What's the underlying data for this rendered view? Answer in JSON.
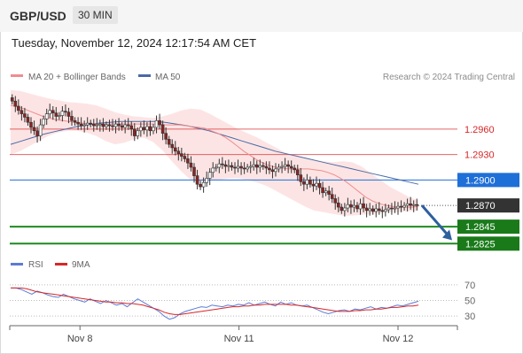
{
  "header": {
    "symbol": "GBP/USD",
    "timeframe": "30 MIN"
  },
  "datetime": "Tuesday, November 12, 2024 12:17:54 AM CET",
  "legend": {
    "ma20": "MA 20 + Bollinger Bands",
    "ma50": "MA 50",
    "credit": "Research © 2024 Trading Central",
    "rsi": "RSI",
    "rsi_ma": "9MA"
  },
  "colors": {
    "up_candle": "#ffffff",
    "down_candle": "#8b2323",
    "ma20": "#ef8d8d",
    "ma50": "#4a6aa5",
    "bollinger": "#fde4e4",
    "resistance": "#d62728",
    "pivot": "#1f6fd8",
    "support": "#1e8a1e",
    "arrow": "#2e5f9e"
  },
  "chart_data": [
    {
      "type": "candlestick",
      "title": "GBP/USD 30 MIN",
      "x_ticks": [
        "Nov 8",
        "Nov 11",
        "Nov 12"
      ],
      "ylim": [
        1.2818,
        1.3012
      ],
      "levels": [
        {
          "label": "1.2960",
          "value": 1.296,
          "kind": "resistance"
        },
        {
          "label": "1.2930",
          "value": 1.293,
          "kind": "resistance"
        },
        {
          "label": "1.2900",
          "value": 1.29,
          "kind": "pivot"
        },
        {
          "label": "1.2870",
          "value": 1.287,
          "kind": "last"
        },
        {
          "label": "1.2845",
          "value": 1.2845,
          "kind": "support"
        },
        {
          "label": "1.2825",
          "value": 1.2825,
          "kind": "support"
        }
      ],
      "close": [
        1.2993,
        1.2987,
        1.2982,
        1.2978,
        1.2974,
        1.2968,
        1.2962,
        1.2958,
        1.2952,
        1.2965,
        1.2972,
        1.2978,
        1.2982,
        1.2979,
        1.2975,
        1.2976,
        1.2981,
        1.298,
        1.2975,
        1.297,
        1.2968,
        1.2966,
        1.2964,
        1.2965,
        1.2967,
        1.2966,
        1.2964,
        1.2965,
        1.2966,
        1.2963,
        1.2965,
        1.2964,
        1.2963,
        1.2966,
        1.2964,
        1.2962,
        1.2965,
        1.2964,
        1.296,
        1.2952,
        1.2958,
        1.2962,
        1.2959,
        1.2963,
        1.2958,
        1.2962,
        1.297,
        1.2965,
        1.2955,
        1.2948,
        1.2942,
        1.2938,
        1.2934,
        1.2931,
        1.2928,
        1.2925,
        1.292,
        1.2915,
        1.2905,
        1.2895,
        1.2892,
        1.2897,
        1.2902,
        1.2909,
        1.2914,
        1.2915,
        1.2919,
        1.2918,
        1.2916,
        1.2917,
        1.2915,
        1.2914,
        1.2916,
        1.2914,
        1.2913,
        1.2915,
        1.2916,
        1.2918,
        1.2915,
        1.2917,
        1.2916,
        1.2914,
        1.2912,
        1.291,
        1.2913,
        1.2915,
        1.2916,
        1.2918,
        1.2916,
        1.2914,
        1.2912,
        1.2906,
        1.2898,
        1.2895,
        1.29,
        1.2895,
        1.2893,
        1.2896,
        1.2891,
        1.2885,
        1.2887,
        1.2883,
        1.2878,
        1.2873,
        1.2868,
        1.2864,
        1.2867,
        1.2871,
        1.2868,
        1.287,
        1.2866,
        1.2872,
        1.2867,
        1.2864,
        1.2866,
        1.2863,
        1.2866,
        1.2864,
        1.2863,
        1.2865,
        1.2867,
        1.2866,
        1.2867,
        1.2869,
        1.2868,
        1.287,
        1.2872,
        1.287,
        1.2871,
        1.287
      ],
      "ma20": [
        1.2988,
        1.2986,
        1.2984,
        1.2981,
        1.2978,
        1.2975,
        1.2973,
        1.2971,
        1.297,
        1.2969,
        1.2968,
        1.2967,
        1.2966,
        1.2966,
        1.2966,
        1.2966,
        1.2966,
        1.2966,
        1.2966,
        1.2966,
        1.2966,
        1.2966,
        1.2966,
        1.2966,
        1.2965,
        1.2965,
        1.2965,
        1.2964,
        1.2963,
        1.2962,
        1.2961,
        1.2958,
        1.2955,
        1.2951,
        1.2946,
        1.294,
        1.2934,
        1.2929,
        1.2924,
        1.292,
        1.2917,
        1.2915,
        1.2914,
        1.2913,
        1.2913,
        1.2913,
        1.2913,
        1.2912,
        1.2911,
        1.2909,
        1.2906,
        1.2902,
        1.2897,
        1.2891,
        1.2885,
        1.2879,
        1.2875,
        1.2872,
        1.287,
        1.2869,
        1.2868,
        1.2868,
        1.2868,
        1.2869
      ],
      "ma50": [
        1.2942,
        1.2946,
        1.295,
        1.2954,
        1.2957,
        1.296,
        1.2963,
        1.2965,
        1.2967,
        1.2968,
        1.2969,
        1.2969,
        1.2969,
        1.2969,
        1.2968,
        1.2966,
        1.2964,
        1.2961,
        1.2958,
        1.2954,
        1.295,
        1.2946,
        1.2942,
        1.2938,
        1.2934,
        1.2931,
        1.2928,
        1.2925,
        1.2922,
        1.2919,
        1.2916,
        1.2913,
        1.291,
        1.2907,
        1.2904,
        1.2901,
        1.2898,
        1.2895
      ],
      "bollinger_upper": [
        1.3006,
        1.3005,
        1.3002,
        1.2999,
        1.2996,
        1.2994,
        1.2992,
        1.2991,
        1.299,
        1.2988,
        1.2984,
        1.298,
        1.2977,
        1.2975,
        1.2974,
        1.2973,
        1.2975,
        1.2978,
        1.2982,
        1.2984,
        1.2983,
        1.2978,
        1.2972,
        1.2966,
        1.296,
        1.2955,
        1.295,
        1.2944,
        1.2938,
        1.2932,
        1.2928,
        1.2926,
        1.2924,
        1.2922,
        1.2921,
        1.2922,
        1.2921,
        1.2916,
        1.2908,
        1.29,
        1.2892,
        1.2886,
        1.288,
        1.2876
      ],
      "bollinger_lower": [
        1.293,
        1.2934,
        1.294,
        1.2946,
        1.2952,
        1.2956,
        1.2958,
        1.2958,
        1.2956,
        1.2952,
        1.2946,
        1.2942,
        1.2944,
        1.2948,
        1.295,
        1.2945,
        1.2935,
        1.2922,
        1.291,
        1.29,
        1.2897,
        1.2899,
        1.29,
        1.2902,
        1.2902,
        1.29,
        1.2897,
        1.2893,
        1.2887,
        1.2881,
        1.2875,
        1.2869,
        1.2864,
        1.2862,
        1.286,
        1.2858,
        1.2858,
        1.2859,
        1.286,
        1.2861,
        1.2862,
        1.2862,
        1.2863,
        1.2864
      ]
    },
    {
      "type": "line",
      "title": "RSI",
      "y_ticks": [
        "70",
        "50",
        "30"
      ],
      "ylim": [
        20,
        80
      ],
      "series": [
        {
          "name": "RSI",
          "color": "#5b7bd5",
          "values": [
            66,
            66,
            64,
            61,
            58,
            62,
            60,
            57,
            55,
            54,
            58,
            55,
            52,
            50,
            48,
            52,
            49,
            46,
            50,
            47,
            44,
            46,
            42,
            47,
            52,
            48,
            44,
            40,
            36,
            30,
            26,
            28,
            33,
            36,
            38,
            40,
            42,
            41,
            44,
            43,
            42,
            44,
            43,
            45,
            44,
            47,
            44,
            46,
            48,
            45,
            43,
            48,
            45,
            47,
            44,
            43,
            44,
            41,
            38,
            35,
            33,
            35,
            37,
            38,
            36,
            39,
            38,
            40,
            42,
            39,
            41,
            40,
            42,
            44,
            43,
            45,
            47,
            49
          ]
        },
        {
          "name": "9MA",
          "color": "#d62728",
          "values": [
            66,
            66,
            66,
            65,
            63,
            61,
            60,
            59,
            58,
            57,
            56,
            55,
            54,
            53,
            52,
            51,
            50,
            49,
            48,
            48,
            47,
            47,
            46,
            46,
            45,
            44,
            42,
            40,
            38,
            35,
            33,
            32,
            32,
            33,
            34,
            35,
            36,
            37,
            38,
            39,
            40,
            41,
            42,
            42,
            43,
            43,
            44,
            44,
            45,
            45,
            45,
            45,
            45,
            44,
            44,
            43,
            42,
            41,
            40,
            39,
            38,
            37,
            36,
            36,
            36,
            37,
            37,
            38,
            38,
            39,
            39,
            40,
            41,
            41,
            42,
            43,
            43,
            44
          ]
        }
      ]
    }
  ]
}
